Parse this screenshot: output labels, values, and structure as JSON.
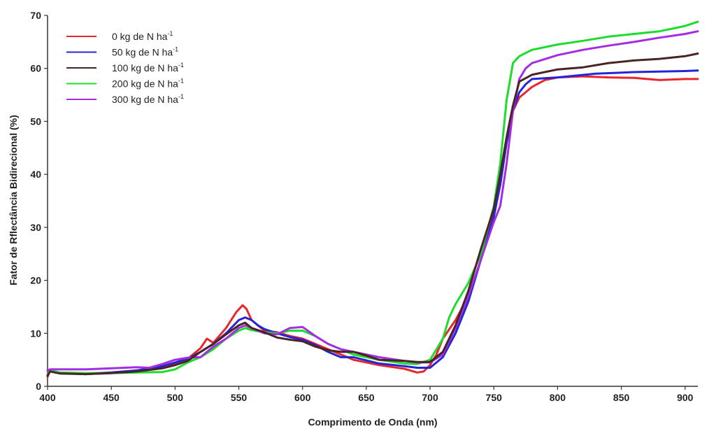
{
  "chart_data": {
    "type": "line",
    "xlabel": "Comprimento de Onda (nm)",
    "ylabel": "Fator de Rflectância Bidirecional (%)",
    "xlim": [
      400,
      910
    ],
    "ylim": [
      0,
      70
    ],
    "xticks": [
      400,
      450,
      500,
      550,
      600,
      650,
      700,
      750,
      800,
      850,
      900
    ],
    "yticks": [
      0,
      10,
      20,
      30,
      40,
      50,
      60,
      70
    ],
    "grid": false,
    "legend_position": "top-left",
    "series": [
      {
        "name": "0  kg de N ha",
        "name_sup": "-1",
        "color": "#e8262b",
        "x": [
          400,
          402,
          410,
          430,
          450,
          470,
          490,
          500,
          510,
          520,
          525,
          530,
          540,
          548,
          553,
          556,
          560,
          565,
          570,
          580,
          590,
          600,
          610,
          620,
          640,
          660,
          680,
          690,
          695,
          700,
          705,
          710,
          720,
          730,
          740,
          750,
          755,
          760,
          765,
          770,
          780,
          790,
          800,
          820,
          840,
          860,
          880,
          900,
          910
        ],
        "y": [
          1.8,
          3.0,
          2.5,
          2.3,
          2.5,
          2.8,
          3.6,
          4.3,
          5.2,
          7.2,
          9.0,
          8.2,
          11.0,
          14.0,
          15.3,
          14.6,
          12.5,
          11.5,
          10.5,
          10.2,
          9.5,
          9.0,
          8.0,
          7.0,
          5.0,
          4.0,
          3.3,
          2.6,
          2.8,
          4.0,
          6.0,
          9.0,
          12.5,
          17.0,
          24.0,
          33.0,
          38.0,
          46.0,
          52.0,
          54.5,
          56.5,
          57.8,
          58.3,
          58.5,
          58.3,
          58.2,
          57.8,
          58.0,
          58.0
        ]
      },
      {
        "name": "50 kg de N ha",
        "name_sup": "-1",
        "color": "#2424d8",
        "x": [
          400,
          402,
          410,
          430,
          450,
          470,
          490,
          500,
          510,
          520,
          530,
          540,
          550,
          555,
          560,
          565,
          570,
          580,
          590,
          600,
          610,
          620,
          630,
          640,
          660,
          680,
          690,
          700,
          710,
          720,
          730,
          740,
          750,
          755,
          760,
          765,
          770,
          775,
          780,
          800,
          830,
          860,
          880,
          900,
          910
        ],
        "y": [
          2.0,
          3.0,
          2.5,
          2.4,
          2.6,
          3.0,
          3.8,
          4.5,
          5.2,
          6.5,
          8.0,
          10.0,
          12.5,
          13.0,
          12.5,
          11.5,
          10.8,
          10.0,
          9.3,
          8.8,
          7.8,
          6.5,
          5.5,
          5.5,
          4.3,
          3.8,
          3.5,
          3.5,
          5.5,
          10.0,
          16.0,
          24.0,
          32.0,
          38.0,
          46.0,
          52.0,
          55.5,
          57.0,
          58.0,
          58.3,
          59.0,
          59.3,
          59.4,
          59.5,
          59.6
        ]
      },
      {
        "name": "100 kg de N ha",
        "name_sup": "-1",
        "color": "#4a2424",
        "x": [
          400,
          402,
          410,
          430,
          450,
          470,
          490,
          500,
          510,
          520,
          530,
          540,
          550,
          555,
          560,
          570,
          580,
          590,
          600,
          610,
          620,
          630,
          640,
          650,
          660,
          680,
          690,
          700,
          710,
          720,
          730,
          740,
          750,
          755,
          760,
          765,
          770,
          780,
          800,
          820,
          840,
          860,
          880,
          900,
          910
        ],
        "y": [
          2.0,
          2.8,
          2.4,
          2.3,
          2.5,
          2.8,
          3.4,
          4.0,
          4.8,
          6.5,
          8.0,
          9.8,
          11.5,
          12.0,
          11.0,
          10.2,
          9.2,
          8.8,
          8.5,
          7.5,
          6.8,
          6.5,
          6.5,
          5.8,
          5.0,
          4.8,
          4.6,
          4.6,
          6.5,
          11.5,
          18.0,
          26.0,
          33.5,
          40.0,
          47.0,
          53.0,
          57.5,
          58.8,
          59.8,
          60.2,
          61.0,
          61.5,
          61.8,
          62.3,
          62.8
        ]
      },
      {
        "name": "200 kg de N ha",
        "name_sup": "-1",
        "color": "#1cdc2c",
        "x": [
          400,
          402,
          410,
          430,
          450,
          470,
          490,
          500,
          510,
          520,
          530,
          540,
          550,
          555,
          560,
          570,
          580,
          590,
          600,
          610,
          620,
          630,
          640,
          660,
          680,
          690,
          700,
          710,
          715,
          720,
          730,
          740,
          750,
          755,
          760,
          765,
          770,
          780,
          800,
          820,
          840,
          860,
          880,
          900,
          910
        ],
        "y": [
          2.2,
          3.0,
          2.6,
          2.5,
          2.5,
          2.6,
          2.7,
          3.2,
          4.5,
          5.5,
          7.0,
          9.0,
          10.5,
          11.0,
          10.6,
          10.2,
          10.0,
          10.5,
          10.5,
          9.5,
          8.0,
          7.0,
          6.0,
          5.0,
          4.3,
          4.2,
          5.0,
          9.0,
          13.0,
          15.5,
          19.5,
          25.0,
          34.0,
          42.0,
          54.0,
          61.0,
          62.3,
          63.5,
          64.5,
          65.2,
          66.0,
          66.5,
          67.0,
          68.0,
          68.8
        ]
      },
      {
        "name": "300 kg de N ha",
        "name_sup": "-1",
        "color": "#a42ce4",
        "x": [
          400,
          402,
          410,
          430,
          450,
          470,
          480,
          490,
          500,
          510,
          520,
          530,
          540,
          550,
          555,
          560,
          570,
          580,
          590,
          600,
          610,
          620,
          630,
          640,
          660,
          680,
          690,
          700,
          710,
          720,
          730,
          740,
          750,
          755,
          760,
          765,
          770,
          775,
          780,
          800,
          820,
          840,
          860,
          880,
          900,
          910
        ],
        "y": [
          3.0,
          3.2,
          3.2,
          3.2,
          3.4,
          3.6,
          3.5,
          4.2,
          5.0,
          5.4,
          5.5,
          7.5,
          9.0,
          11.0,
          11.5,
          11.0,
          10.0,
          9.8,
          11.0,
          11.2,
          9.5,
          8.0,
          7.0,
          6.5,
          5.5,
          4.8,
          4.5,
          4.5,
          6.0,
          11.0,
          17.0,
          24.0,
          31.0,
          34.0,
          42.0,
          52.0,
          58.0,
          60.0,
          61.0,
          62.5,
          63.5,
          64.3,
          65.0,
          65.8,
          66.5,
          67.0
        ]
      }
    ]
  }
}
